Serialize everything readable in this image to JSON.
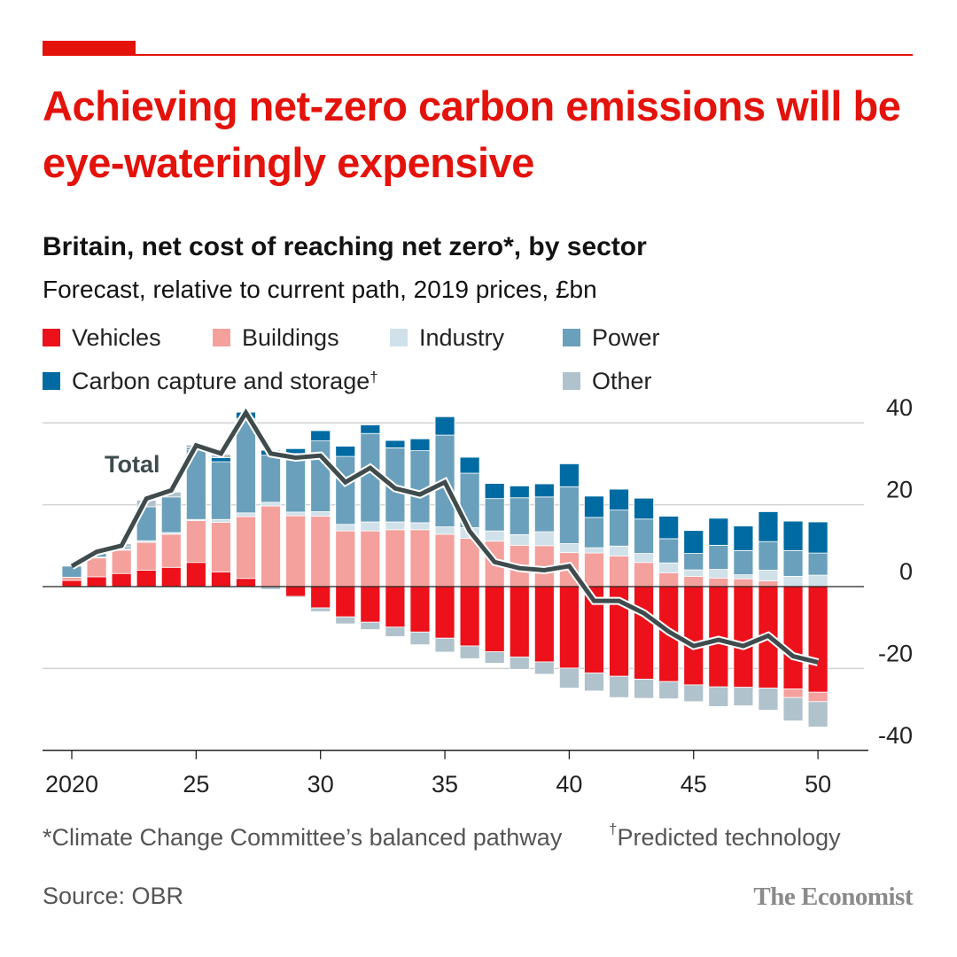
{
  "title": "Achieving net-zero carbon emissions will be eye-wateringly expensive",
  "subtitle": "Britain, net cost of reaching net zero*, by sector",
  "subtitle2": "Forecast, relative to current path, 2019 prices, £bn",
  "footnote": "*Climate Change Committee’s balanced pathway",
  "footnote2_mark": "†",
  "footnote2": "Predicted technology",
  "source": "Source: OBR",
  "logo": "The Economist",
  "colors": {
    "accent": "#e3120b",
    "line": "#3f4b4c"
  },
  "chart_data": {
    "type": "bar",
    "stacked": true,
    "title": "Britain, net cost of reaching net zero*, by sector",
    "ylabel": "£bn",
    "ylim": [
      -40,
      40
    ],
    "yticks": [
      40,
      20,
      0,
      -20,
      -40
    ],
    "ytick_labels": [
      "40",
      "20",
      "0",
      "-20",
      "-40"
    ],
    "grid": true,
    "axis_side": "right",
    "legend_position": "top",
    "years": [
      2020,
      2021,
      2022,
      2023,
      2024,
      2025,
      2026,
      2027,
      2028,
      2029,
      2030,
      2031,
      2032,
      2033,
      2034,
      2035,
      2036,
      2037,
      2038,
      2039,
      2040,
      2041,
      2042,
      2043,
      2044,
      2045,
      2046,
      2047,
      2048,
      2049,
      2050
    ],
    "xticks": [
      2020,
      2025,
      2030,
      2035,
      2040,
      2045,
      2050
    ],
    "xtick_labels": [
      "2020",
      "25",
      "30",
      "35",
      "40",
      "45",
      "50"
    ],
    "series": [
      {
        "name": "Vehicles",
        "color": "#ec111a",
        "values": [
          1.5,
          2.4,
          3.2,
          4.0,
          4.7,
          5.9,
          3.6,
          2.0,
          0,
          -2.4,
          -5.2,
          -7.4,
          -8.7,
          -9.9,
          -11.1,
          -12.6,
          -14.5,
          -15.9,
          -17.2,
          -18.4,
          -19.9,
          -21.1,
          -21.9,
          -22.6,
          -23.2,
          -24.0,
          -24.5,
          -24.6,
          -24.8,
          -25.0,
          -25.8
        ]
      },
      {
        "name": "Buildings",
        "color": "#f4a09c",
        "values": [
          0.8,
          4.6,
          5.7,
          6.8,
          8.1,
          10.2,
          12.1,
          15.1,
          19.7,
          17.3,
          17.2,
          13.6,
          13.6,
          13.9,
          13.9,
          12.8,
          11.8,
          11.1,
          10.1,
          10.0,
          8.3,
          8.2,
          7.5,
          5.9,
          3.4,
          2.5,
          2.1,
          1.9,
          1.4,
          -2.1,
          -2.3
        ]
      },
      {
        "name": "Industry",
        "color": "#d0e1ea",
        "values": [
          0,
          0.2,
          0.3,
          0.4,
          0.4,
          0.3,
          0.7,
          0.9,
          0.9,
          0.9,
          1.1,
          1.6,
          2.2,
          1.9,
          1.7,
          1.8,
          2.6,
          2.5,
          2.6,
          3.4,
          2.2,
          1.3,
          2.4,
          2.2,
          2.4,
          1.6,
          2.1,
          1.0,
          2.6,
          2.5,
          2.8
        ]
      },
      {
        "name": "Power",
        "color": "#6aa0bb",
        "values": [
          2.7,
          1.0,
          0.5,
          8.3,
          8.7,
          17.1,
          14.1,
          23.1,
          11.5,
          14.3,
          17.3,
          16.6,
          21.6,
          18.1,
          17.6,
          22.4,
          13.3,
          7.9,
          9.0,
          8.5,
          13.9,
          7.4,
          8.8,
          8.4,
          5.9,
          4.0,
          5.9,
          5.9,
          7.0,
          6.3,
          5.4
        ]
      },
      {
        "name": "Carbon capture and storage",
        "name_mark": "†",
        "color": "#006ba2",
        "values": [
          0,
          0,
          0,
          0,
          0,
          0.4,
          1.0,
          1.5,
          1.2,
          1.2,
          2.5,
          2.5,
          2.1,
          1.8,
          2.9,
          4.5,
          3.9,
          3.7,
          2.9,
          3.2,
          5.6,
          5.2,
          5.1,
          5.1,
          5.5,
          5.6,
          6.6,
          6.0,
          7.3,
          7.2,
          7.6
        ]
      },
      {
        "name": "Other",
        "color": "#b0c2cc",
        "values": [
          0,
          0.3,
          0.8,
          1.6,
          1.2,
          0.7,
          0.8,
          0,
          -0.7,
          -0.3,
          -0.9,
          -1.7,
          -1.8,
          -2.3,
          -3.1,
          -3.4,
          -3.1,
          -2.8,
          -3.0,
          -3.0,
          -4.9,
          -4.4,
          -5.2,
          -4.7,
          -4.2,
          -4.1,
          -4.8,
          -4.5,
          -5.4,
          -5.7,
          -6.2
        ]
      }
    ],
    "total": {
      "name": "Total",
      "type": "line",
      "color": "#3f4b4c",
      "values": [
        5,
        8.5,
        10,
        21.5,
        23.5,
        34.5,
        32.5,
        42.5,
        32.5,
        31.5,
        32,
        25.5,
        29,
        24,
        22.5,
        25.5,
        13.5,
        6,
        4.5,
        4,
        5,
        -3.5,
        -3.5,
        -6.5,
        -11,
        -14.5,
        -13,
        -14.5,
        -12,
        -17,
        -18.5
      ]
    }
  }
}
